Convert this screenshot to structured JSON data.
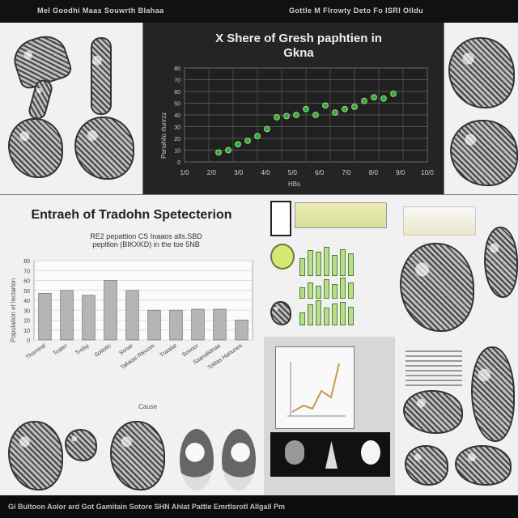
{
  "topbar": {
    "left": "Mel Goodhi Maas Souwrth Blahaa",
    "right": "Gottle M Flrowty Deto Fo ISRI Olldu"
  },
  "top_chart": {
    "title_line_1": "X Shere of Gresh paphtien in",
    "title_line_2": "Gkna",
    "x_label": "HBs",
    "y_label": "Penohilo rlunrzz",
    "chart_data": {
      "type": "scatter",
      "title": "X Shere of Gresh paphtien in Gkna",
      "xlabel": "HBs",
      "ylabel": "Penohilo rlunrzz",
      "x_ticks": [
        "1/0",
        "2/0",
        "3/0",
        "4/0",
        "5/0",
        "6/0",
        "7/0",
        "8/0",
        "9/0",
        "10/0"
      ],
      "y_ticks": [
        "0",
        "10",
        "20",
        "30",
        "40",
        "50",
        "60",
        "70",
        "80"
      ],
      "xlim": [
        0,
        10
      ],
      "ylim": [
        0,
        80
      ],
      "series": [
        {
          "name": "Gresh paphtien",
          "x": [
            1.4,
            1.8,
            2.2,
            2.6,
            3.0,
            3.4,
            3.8,
            4.2,
            4.6,
            5.0,
            5.4,
            5.8,
            6.2,
            6.6,
            7.0,
            7.4,
            7.8,
            8.2,
            8.6
          ],
          "y": [
            8,
            10,
            15,
            18,
            22,
            28,
            38,
            39,
            40,
            45,
            40,
            48,
            42,
            45,
            47,
            52,
            55,
            54,
            58
          ]
        }
      ],
      "point_color": "#35a43c",
      "grid": true
    }
  },
  "bar_chart": {
    "title": "Entraeh of Tradohn Spetecterion",
    "subtitle_line_1": "RE2 pepattion CS Inaaos alls.SBD",
    "subtitle_line_2": "pepltlon (BIKXKD) in the toe 5NB",
    "x_label": "Cause",
    "y_label": "Population et lectarlon",
    "chart_data": {
      "type": "bar",
      "title": "Entraeh of Tradohn Spetecterion",
      "subtitle": "RE2 pepattion CS Inaaos alls.SBD pepltlon (BIKXKD) in the toe 5NB",
      "xlabel": "Cause",
      "ylabel": "Population et lectarlon",
      "categories": [
        "Thornind",
        "Toater",
        "Trolsy",
        "Soitotic",
        "Sooar",
        "Tallatas Rtecom",
        "Tratalat",
        "Soooor",
        "Saanalidnaa",
        "Toltlas Hartunes"
      ],
      "values": [
        47,
        50,
        45,
        60,
        50,
        30,
        30,
        31,
        31,
        20
      ],
      "ylim": [
        0,
        80
      ],
      "y_ticks": [
        "0",
        "10",
        "20",
        "30",
        "40",
        "50",
        "60",
        "70",
        "80"
      ],
      "bar_color": "#b5b5b5",
      "grid": true
    }
  },
  "footer": {
    "text": "Gi Bultoon Aolor ard Got Gamitain Sotore SHN Ahlat Pattle Emrtlsrotl Allgall Pm"
  }
}
